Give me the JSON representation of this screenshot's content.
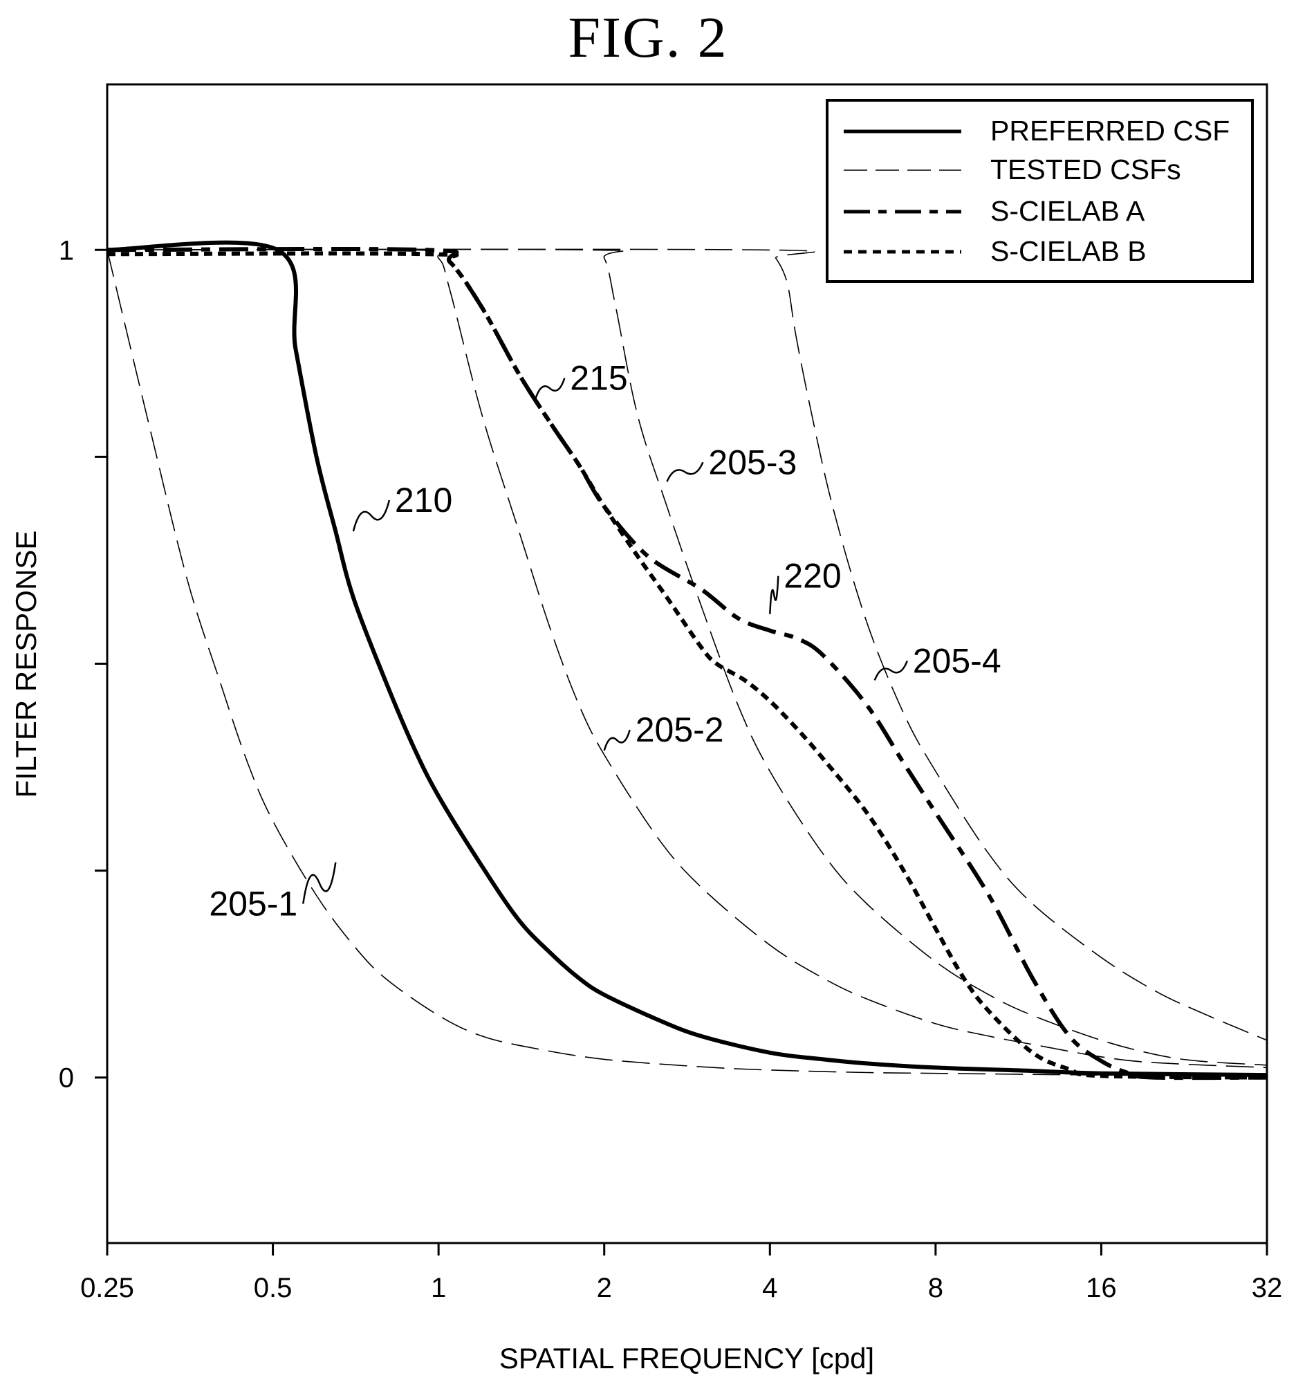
{
  "figure_title": "FIG. 2",
  "chart_data": {
    "type": "line",
    "title": "FIG. 2",
    "xlabel": "SPATIAL FREQUENCY [cpd]",
    "ylabel": "FILTER RESPONSE",
    "x_scale": "log2",
    "xlim": [
      0.25,
      32
    ],
    "ylim": [
      -0.2,
      1.2
    ],
    "x_ticks": [
      0.25,
      0.5,
      1,
      2,
      4,
      8,
      16,
      32
    ],
    "x_tick_labels": [
      "0.25",
      "0.5",
      "1",
      "2",
      "4",
      "8",
      "16",
      "32"
    ],
    "y_ticks": [
      0,
      0.25,
      0.5,
      0.75,
      1
    ],
    "y_tick_labels": [
      "0",
      "",
      "",
      "",
      "1"
    ],
    "grid": false,
    "legend_position": "top-right",
    "legend": [
      {
        "label": "PREFERRED CSF",
        "style": "solid-thick"
      },
      {
        "label": "TESTED CSFs",
        "style": "dashed-thin"
      },
      {
        "label": "S-CIELAB A",
        "style": "dash-dot-thick"
      },
      {
        "label": "S-CIELAB B",
        "style": "dotted-thick"
      }
    ],
    "series": [
      {
        "id": "205-1",
        "label": "205-1",
        "style": "dashed-thin",
        "points": [
          [
            0.25,
            1.0
          ],
          [
            0.3,
            0.78
          ],
          [
            0.35,
            0.6
          ],
          [
            0.4,
            0.48
          ],
          [
            0.45,
            0.38
          ],
          [
            0.5,
            0.31
          ],
          [
            0.6,
            0.22
          ],
          [
            0.7,
            0.16
          ],
          [
            0.8,
            0.12
          ],
          [
            1.0,
            0.075
          ],
          [
            1.2,
            0.05
          ],
          [
            1.5,
            0.035
          ],
          [
            2.0,
            0.022
          ],
          [
            3.0,
            0.013
          ],
          [
            4.0,
            0.009
          ],
          [
            6.0,
            0.006
          ],
          [
            8.0,
            0.005
          ],
          [
            16.0,
            0.003
          ],
          [
            32.0,
            0.002
          ]
        ]
      },
      {
        "id": "205-2",
        "label": "205-2",
        "style": "dashed-thin",
        "points": [
          [
            0.25,
            1.0
          ],
          [
            0.9,
            1.0
          ],
          [
            1.0,
            0.99
          ],
          [
            1.05,
            0.95
          ],
          [
            1.2,
            0.8
          ],
          [
            1.4,
            0.66
          ],
          [
            1.6,
            0.54
          ],
          [
            1.8,
            0.45
          ],
          [
            2.0,
            0.39
          ],
          [
            2.5,
            0.29
          ],
          [
            3.0,
            0.23
          ],
          [
            4.0,
            0.16
          ],
          [
            5.0,
            0.12
          ],
          [
            6.0,
            0.095
          ],
          [
            8.0,
            0.065
          ],
          [
            10.0,
            0.05
          ],
          [
            12.0,
            0.04
          ],
          [
            16.0,
            0.025
          ],
          [
            20.0,
            0.018
          ],
          [
            32.0,
            0.012
          ]
        ]
      },
      {
        "id": "205-3",
        "label": "205-3",
        "style": "dashed-thin",
        "points": [
          [
            0.25,
            1.0
          ],
          [
            1.85,
            1.0
          ],
          [
            2.0,
            0.99
          ],
          [
            2.1,
            0.93
          ],
          [
            2.3,
            0.8
          ],
          [
            2.6,
            0.69
          ],
          [
            3.0,
            0.57
          ],
          [
            3.5,
            0.45
          ],
          [
            4.0,
            0.37
          ],
          [
            5.0,
            0.27
          ],
          [
            6.0,
            0.21
          ],
          [
            8.0,
            0.14
          ],
          [
            10.0,
            0.1
          ],
          [
            12.0,
            0.075
          ],
          [
            16.0,
            0.045
          ],
          [
            20.0,
            0.028
          ],
          [
            24.0,
            0.02
          ],
          [
            32.0,
            0.015
          ]
        ]
      },
      {
        "id": "205-4",
        "label": "205-4",
        "style": "dashed-thin",
        "points": [
          [
            0.25,
            1.0
          ],
          [
            3.9,
            1.0
          ],
          [
            4.1,
            0.99
          ],
          [
            4.3,
            0.96
          ],
          [
            4.45,
            0.9
          ],
          [
            4.7,
            0.82
          ],
          [
            5.2,
            0.69
          ],
          [
            6.0,
            0.55
          ],
          [
            7.0,
            0.44
          ],
          [
            8.0,
            0.37
          ],
          [
            10.0,
            0.27
          ],
          [
            12.0,
            0.21
          ],
          [
            16.0,
            0.145
          ],
          [
            20.0,
            0.105
          ],
          [
            24.0,
            0.08
          ],
          [
            32.0,
            0.045
          ]
        ]
      },
      {
        "id": "210",
        "label": "210",
        "style": "solid-thick",
        "points": [
          [
            0.25,
            1.0
          ],
          [
            0.51,
            1.0
          ],
          [
            0.55,
            0.88
          ],
          [
            0.6,
            0.75
          ],
          [
            0.65,
            0.66
          ],
          [
            0.7,
            0.58
          ],
          [
            0.8,
            0.48
          ],
          [
            0.9,
            0.4
          ],
          [
            1.0,
            0.34
          ],
          [
            1.2,
            0.255
          ],
          [
            1.4,
            0.19
          ],
          [
            1.6,
            0.15
          ],
          [
            1.8,
            0.12
          ],
          [
            2.0,
            0.1
          ],
          [
            2.5,
            0.07
          ],
          [
            3.0,
            0.05
          ],
          [
            4.0,
            0.03
          ],
          [
            5.0,
            0.022
          ],
          [
            6.0,
            0.017
          ],
          [
            8.0,
            0.012
          ],
          [
            12.0,
            0.008
          ],
          [
            16.0,
            0.005
          ],
          [
            32.0,
            0.003
          ]
        ]
      },
      {
        "id": "215",
        "label": "215",
        "style": "dotted-thick",
        "points": [
          [
            0.25,
            0.995
          ],
          [
            0.95,
            0.995
          ],
          [
            1.05,
            0.985
          ],
          [
            1.2,
            0.93
          ],
          [
            1.4,
            0.85
          ],
          [
            1.6,
            0.79
          ],
          [
            1.8,
            0.74
          ],
          [
            2.0,
            0.69
          ],
          [
            2.3,
            0.63
          ],
          [
            2.6,
            0.58
          ],
          [
            3.0,
            0.52
          ],
          [
            3.2,
            0.5
          ],
          [
            3.6,
            0.48
          ],
          [
            4.0,
            0.455
          ],
          [
            4.5,
            0.42
          ],
          [
            5.0,
            0.385
          ],
          [
            6.0,
            0.32
          ],
          [
            7.0,
            0.25
          ],
          [
            8.0,
            0.18
          ],
          [
            9.0,
            0.12
          ],
          [
            10.0,
            0.08
          ],
          [
            12.0,
            0.03
          ],
          [
            14.0,
            0.01
          ],
          [
            16.0,
            0.002
          ],
          [
            32.0,
            0.0
          ]
        ]
      },
      {
        "id": "220",
        "label": "220",
        "style": "dash-dot-thick",
        "points": [
          [
            0.25,
            1.0
          ],
          [
            0.95,
            1.0
          ],
          [
            1.05,
            0.985
          ],
          [
            1.2,
            0.93
          ],
          [
            1.4,
            0.85
          ],
          [
            1.6,
            0.79
          ],
          [
            1.8,
            0.74
          ],
          [
            2.0,
            0.69
          ],
          [
            2.4,
            0.63
          ],
          [
            3.0,
            0.59
          ],
          [
            3.5,
            0.555
          ],
          [
            4.0,
            0.54
          ],
          [
            4.5,
            0.53
          ],
          [
            5.0,
            0.51
          ],
          [
            6.0,
            0.45
          ],
          [
            7.0,
            0.38
          ],
          [
            8.0,
            0.32
          ],
          [
            10.0,
            0.22
          ],
          [
            12.0,
            0.12
          ],
          [
            14.0,
            0.05
          ],
          [
            16.0,
            0.02
          ],
          [
            18.0,
            0.005
          ],
          [
            20.0,
            0.0
          ],
          [
            32.0,
            0.0
          ]
        ]
      }
    ],
    "annotations": [
      {
        "text": "215",
        "target": "215",
        "x": 1.5,
        "y": 0.82
      },
      {
        "text": "210",
        "target": "210",
        "x": 0.7,
        "y": 0.66
      },
      {
        "text": "205-3",
        "target": "205-3",
        "x": 2.6,
        "y": 0.72
      },
      {
        "text": "220",
        "target": "220",
        "x": 4.0,
        "y": 0.56
      },
      {
        "text": "205-4",
        "target": "205-4",
        "x": 6.2,
        "y": 0.48
      },
      {
        "text": "205-2",
        "target": "205-2",
        "x": 2.0,
        "y": 0.395
      },
      {
        "text": "205-1",
        "target": "205-1",
        "x": 0.65,
        "y": 0.26
      }
    ]
  }
}
